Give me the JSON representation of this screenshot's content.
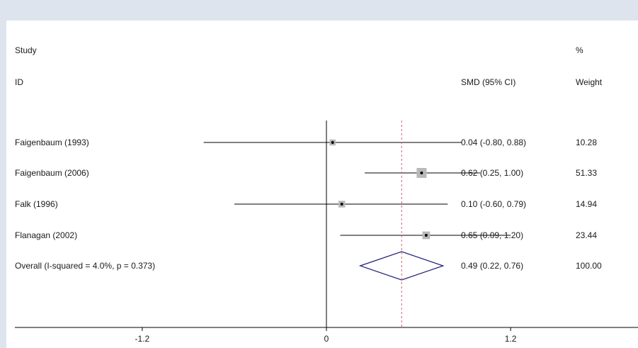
{
  "chart_data": {
    "type": "forest",
    "headers": {
      "study_line1": "Study",
      "study_line2": "ID",
      "effect": "SMD (95% CI)",
      "weight_line1": "%",
      "weight_line2": "Weight"
    },
    "studies": [
      {
        "label": "Faigenbaum (1993)",
        "es": 0.04,
        "lo": -0.8,
        "hi": 0.88,
        "ci_text": "0.04 (-0.80, 0.88)",
        "weight": 10.28,
        "weight_text": "10.28"
      },
      {
        "label": "Faigenbaum (2006)",
        "es": 0.62,
        "lo": 0.25,
        "hi": 1.0,
        "ci_text": "0.62 (0.25, 1.00)",
        "weight": 51.33,
        "weight_text": "51.33"
      },
      {
        "label": "Falk (1996)",
        "es": 0.1,
        "lo": -0.6,
        "hi": 0.79,
        "ci_text": "0.10 (-0.60, 0.79)",
        "weight": 14.94,
        "weight_text": "14.94"
      },
      {
        "label": "Flanagan (2002)",
        "es": 0.65,
        "lo": 0.09,
        "hi": 1.2,
        "ci_text": "0.65 (0.09, 1.20)",
        "weight": 23.44,
        "weight_text": "23.44"
      }
    ],
    "overall": {
      "label": "Overall  (I-squared = 4.0%, p = 0.373)",
      "es": 0.49,
      "lo": 0.22,
      "hi": 0.76,
      "ci_text": "0.49 (0.22, 0.76)",
      "weight_text": "100.00"
    },
    "x_ticks": [
      {
        "value": -1.2,
        "label": "-1.2"
      },
      {
        "value": 0,
        "label": "0"
      },
      {
        "value": 1.2,
        "label": "1.2"
      }
    ],
    "xlim": [
      -2.03,
      2.03
    ],
    "colors": {
      "line": "#000000",
      "diamond": "#1f1f7a",
      "ref_line": "#d06070",
      "box": "#b8b8b8"
    }
  }
}
